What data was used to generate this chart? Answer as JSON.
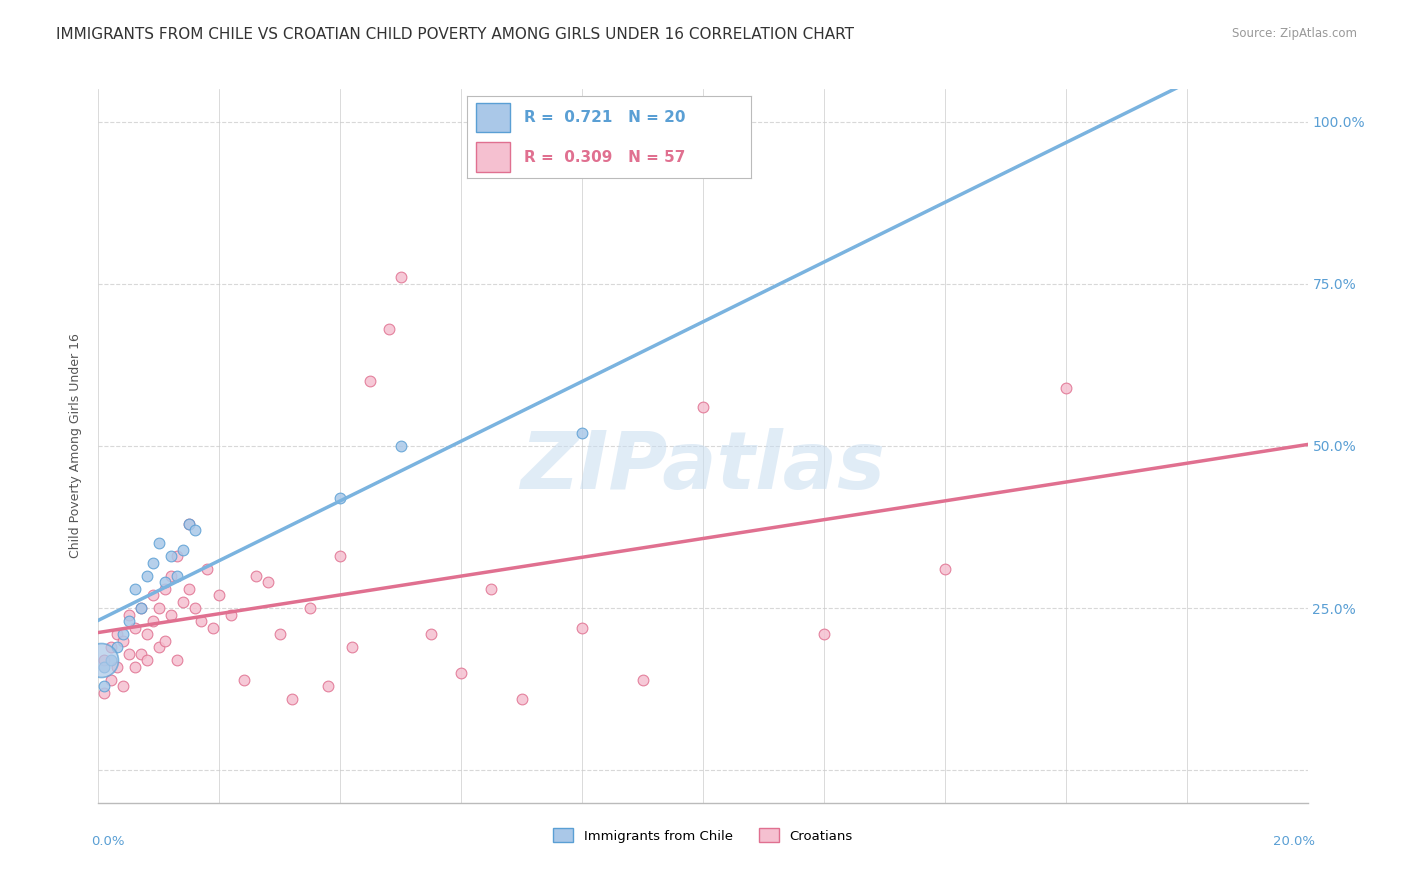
{
  "title": "IMMIGRANTS FROM CHILE VS CROATIAN CHILD POVERTY AMONG GIRLS UNDER 16 CORRELATION CHART",
  "source": "Source: ZipAtlas.com",
  "ylabel": "Child Poverty Among Girls Under 16",
  "ytick_vals": [
    0,
    0.25,
    0.5,
    0.75,
    1.0
  ],
  "ytick_labels": [
    "",
    "25.0%",
    "50.0%",
    "75.0%",
    "100.0%"
  ],
  "xlim": [
    0,
    0.2
  ],
  "ylim": [
    -0.05,
    1.05
  ],
  "watermark": "ZIPatlas",
  "blue": {
    "name": "Immigrants from Chile",
    "R": 0.721,
    "N": 20,
    "color": "#aac8e8",
    "edge_color": "#5a9fd4",
    "line_color": "#7ab3df",
    "marker_size": 60,
    "x": [
      0.001,
      0.001,
      0.002,
      0.003,
      0.004,
      0.005,
      0.006,
      0.007,
      0.008,
      0.009,
      0.01,
      0.011,
      0.012,
      0.013,
      0.014,
      0.015,
      0.016,
      0.04,
      0.05,
      0.08
    ],
    "y": [
      0.13,
      0.16,
      0.17,
      0.19,
      0.21,
      0.23,
      0.28,
      0.25,
      0.3,
      0.32,
      0.35,
      0.29,
      0.33,
      0.3,
      0.34,
      0.38,
      0.37,
      0.42,
      0.5,
      0.52
    ]
  },
  "pink": {
    "name": "Croatians",
    "R": 0.309,
    "N": 57,
    "color": "#f5c0d0",
    "edge_color": "#e07090",
    "line_color": "#e07090",
    "marker_size": 60,
    "x": [
      0.001,
      0.001,
      0.002,
      0.002,
      0.003,
      0.003,
      0.004,
      0.004,
      0.005,
      0.005,
      0.006,
      0.006,
      0.007,
      0.007,
      0.008,
      0.008,
      0.009,
      0.009,
      0.01,
      0.01,
      0.011,
      0.011,
      0.012,
      0.012,
      0.013,
      0.013,
      0.014,
      0.015,
      0.015,
      0.016,
      0.017,
      0.018,
      0.019,
      0.02,
      0.022,
      0.024,
      0.026,
      0.028,
      0.03,
      0.032,
      0.035,
      0.038,
      0.04,
      0.042,
      0.045,
      0.048,
      0.05,
      0.055,
      0.06,
      0.065,
      0.07,
      0.08,
      0.09,
      0.1,
      0.12,
      0.14,
      0.16
    ],
    "y": [
      0.12,
      0.17,
      0.14,
      0.19,
      0.16,
      0.21,
      0.13,
      0.2,
      0.18,
      0.24,
      0.16,
      0.22,
      0.18,
      0.25,
      0.17,
      0.21,
      0.23,
      0.27,
      0.19,
      0.25,
      0.28,
      0.2,
      0.24,
      0.3,
      0.17,
      0.33,
      0.26,
      0.28,
      0.38,
      0.25,
      0.23,
      0.31,
      0.22,
      0.27,
      0.24,
      0.14,
      0.3,
      0.29,
      0.21,
      0.11,
      0.25,
      0.13,
      0.33,
      0.19,
      0.6,
      0.68,
      0.76,
      0.21,
      0.15,
      0.28,
      0.11,
      0.22,
      0.14,
      0.56,
      0.21,
      0.31,
      0.59
    ]
  },
  "background_color": "#ffffff",
  "grid_color": "#d8d8d8",
  "title_fontsize": 11,
  "axis_fontsize": 10,
  "legend_fontsize": 11
}
